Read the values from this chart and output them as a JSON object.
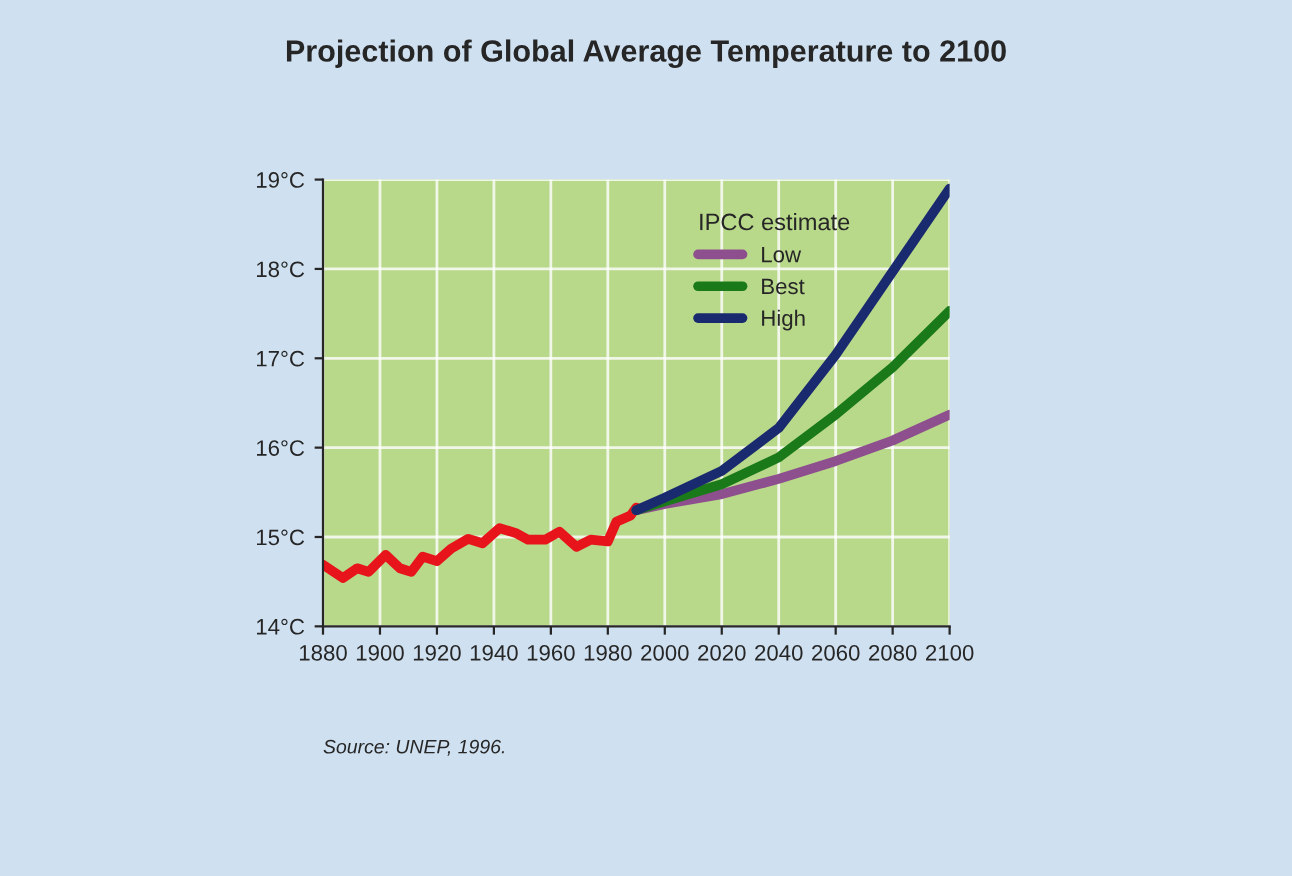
{
  "chart_data": {
    "type": "line",
    "title": "Projection of Global Average Temperature to 2100",
    "legend_title": "IPCC estimate",
    "legend": "top center",
    "grid": true,
    "xlim": [
      1880,
      2100
    ],
    "xticks": [
      1880,
      1900,
      1920,
      1940,
      1960,
      1980,
      2000,
      2020,
      2040,
      2060,
      2080,
      2100
    ],
    "ylim": [
      14,
      19
    ],
    "yticks": [
      {
        "value": 14,
        "label": "14°C"
      },
      {
        "value": 15,
        "label": "15°C"
      },
      {
        "value": 16,
        "label": "16°C"
      },
      {
        "value": 17,
        "label": "17°C"
      },
      {
        "value": 18,
        "label": "18°C"
      },
      {
        "value": 19,
        "label": "19°C"
      }
    ],
    "annotations": [
      "Source: UNEP, 1996."
    ],
    "series": [
      {
        "color": "#e8141c",
        "x": [
          1880,
          1887,
          1892,
          1896,
          1902,
          1907,
          1911,
          1915,
          1920,
          1925,
          1931,
          1936,
          1942,
          1948,
          1952,
          1958,
          1963,
          1969,
          1974,
          1980,
          1983,
          1988,
          1990
        ],
        "values": [
          14.69,
          14.54,
          14.65,
          14.61,
          14.8,
          14.65,
          14.61,
          14.78,
          14.73,
          14.87,
          14.98,
          14.93,
          15.1,
          15.04,
          14.97,
          14.97,
          15.06,
          14.89,
          14.97,
          14.95,
          15.17,
          15.24,
          15.33
        ]
      },
      {
        "name": "Low",
        "color": "#8e4f8e",
        "x": [
          1990,
          2000,
          2020,
          2040,
          2060,
          2080,
          2100
        ],
        "values": [
          15.3,
          15.37,
          15.48,
          15.65,
          15.85,
          16.08,
          16.37
        ]
      },
      {
        "name": "Best",
        "color": "#1a7a1a",
        "x": [
          1990,
          2000,
          2020,
          2040,
          2060,
          2080,
          2100
        ],
        "values": [
          15.3,
          15.4,
          15.59,
          15.89,
          16.37,
          16.9,
          17.53
        ]
      },
      {
        "name": "High",
        "color": "#1a2a6e",
        "x": [
          1990,
          2000,
          2020,
          2040,
          2060,
          2080,
          2100
        ],
        "values": [
          15.3,
          15.44,
          15.74,
          16.22,
          17.04,
          17.97,
          18.9
        ]
      }
    ]
  }
}
